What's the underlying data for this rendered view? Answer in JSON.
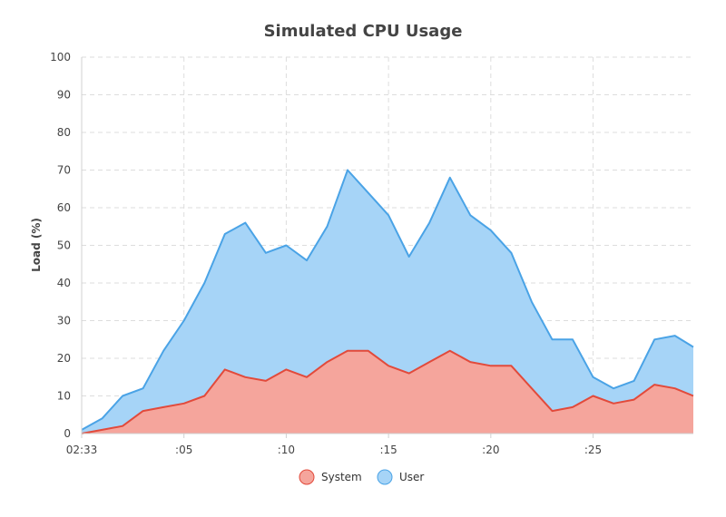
{
  "chart_data": {
    "type": "area",
    "title": "Simulated CPU Usage",
    "xlabel": "",
    "ylabel": "Load (%)",
    "ylim": [
      0,
      100
    ],
    "y_ticks": [
      0,
      10,
      20,
      30,
      40,
      50,
      60,
      70,
      80,
      90,
      100
    ],
    "x_tick_labels": [
      "02:33",
      ":05",
      ":10",
      ":15",
      ":20",
      ":25"
    ],
    "x_tick_minutes": [
      0,
      5,
      10,
      15,
      20,
      25
    ],
    "x_range_minutes": [
      0,
      29.9
    ],
    "grid": true,
    "stacked": true,
    "legend_position": "bottom",
    "x_minutes": [
      0,
      1,
      2,
      3,
      4,
      5,
      6,
      7,
      8,
      9,
      10,
      11,
      12,
      13,
      14,
      15,
      16,
      17,
      18,
      19,
      20,
      21,
      22,
      23,
      24,
      25,
      26,
      27,
      28,
      29,
      29.9
    ],
    "series": [
      {
        "name": "System",
        "color": "#e24a3b",
        "fill": "#f5a59c",
        "values": [
          0,
          1,
          2,
          6,
          7,
          8,
          10,
          17,
          15,
          14,
          17,
          15,
          19,
          22,
          22,
          18,
          16,
          19,
          22,
          19,
          18,
          18,
          12,
          6,
          7,
          10,
          8,
          9,
          13,
          12,
          10
        ]
      },
      {
        "name": "User",
        "color": "#4aa3e6",
        "fill": "#a6d4f7",
        "total_values": [
          1,
          4,
          10,
          12,
          22,
          30,
          40,
          53,
          56,
          48,
          50,
          46,
          55,
          70,
          64,
          58,
          47,
          56,
          68,
          58,
          54,
          48,
          35,
          25,
          25,
          15,
          12,
          14,
          25,
          26,
          23
        ]
      }
    ]
  }
}
